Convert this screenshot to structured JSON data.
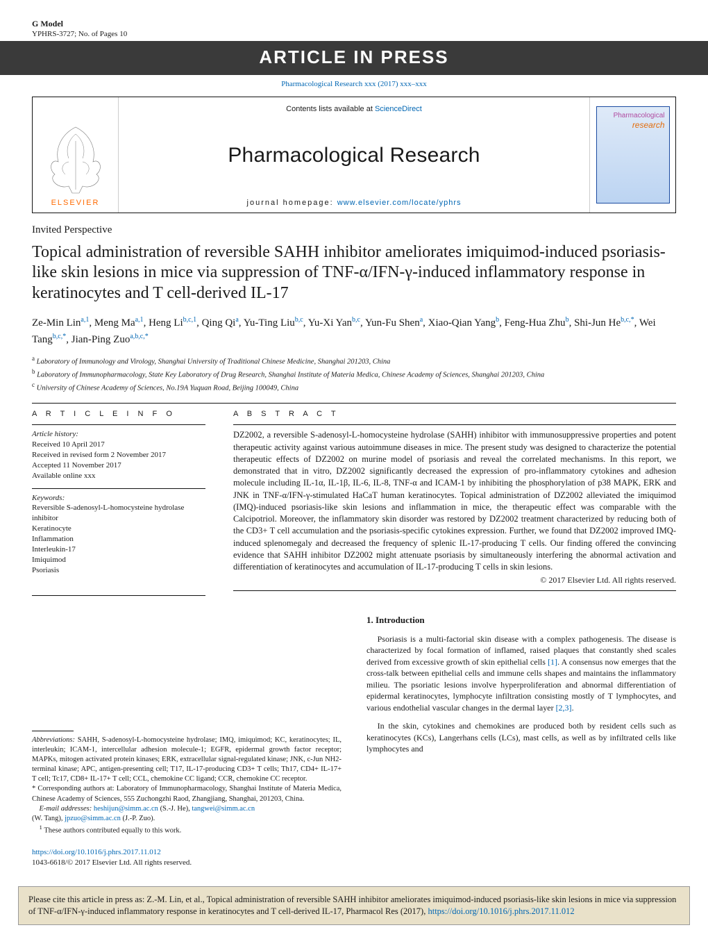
{
  "gmodel": {
    "title": "G Model",
    "sub": "YPHRS-3727;   No. of Pages 10"
  },
  "aip": "ARTICLE IN PRESS",
  "ref_line": "Pharmacological Research xxx (2017) xxx–xxx",
  "masthead": {
    "contents_prefix": "Contents lists available at ",
    "contents_link": "ScienceDirect",
    "journal": "Pharmacological Research",
    "homepage_prefix": "journal homepage: ",
    "homepage_link": "www.elsevier.com/locate/yphrs",
    "elsevier": "ELSEVIER",
    "cover_t1": "Pharmacological",
    "cover_t2": "research"
  },
  "article_type": "Invited Perspective",
  "title": "Topical administration of reversible SAHH inhibitor ameliorates imiquimod-induced psoriasis-like skin lesions in mice via suppression of TNF-α/IFN-γ-induced inflammatory response in keratinocytes and T cell-derived IL-17",
  "authors_html": "Ze-Min Lin<sup>a,1</sup>, Meng Ma<sup>a,1</sup>, Heng Li<sup>b,c,1</sup>, Qing Qi<sup>a</sup>, Yu-Ting Liu<sup>b,c</sup>, Yu-Xi Yan<sup>b,c</sup>, Yun-Fu Shen<sup>a</sup>, Xiao-Qian Yang<sup>b</sup>, Feng-Hua Zhu<sup>b</sup>, Shi-Jun He<sup>b,c,<span class=\"ast\">*</span></sup>, Wei Tang<sup>b,c,<span class=\"ast\">*</span></sup>, Jian-Ping Zuo<sup>a,b,c,<span class=\"ast\">*</span></sup>",
  "affils": {
    "a": "Laboratory of Immunology and Virology, Shanghai University of Traditional Chinese Medicine, Shanghai 201203, China",
    "b": "Laboratory of Immunopharmacology, State Key Laboratory of Drug Research, Shanghai Institute of Materia Medica, Chinese Academy of Sciences, Shanghai 201203, China",
    "c": "University of Chinese Academy of Sciences, No.19A Yuquan Road, Beijing 100049, China"
  },
  "heads": {
    "info": "A R T I C L E    I N F O",
    "abs": "A B S T R A C T"
  },
  "history": {
    "label": "Article history:",
    "l1": "Received 10 April 2017",
    "l2": "Received in revised form 2 November 2017",
    "l3": "Accepted 11 November 2017",
    "l4": "Available online xxx"
  },
  "keywords": {
    "label": "Keywords:",
    "items": [
      "Reversible S-adenosyl-L-homocysteine hydrolase inhibitor",
      "Keratinocyte",
      "Inflammation",
      "Interleukin-17",
      "Imiquimod",
      "Psoriasis"
    ]
  },
  "abstract": "DZ2002, a reversible S-adenosyl-L-homocysteine hydrolase (SAHH) inhibitor with immunosuppressive properties and potent therapeutic activity against various autoimmune diseases in mice. The present study was designed to characterize the potential therapeutic effects of DZ2002 on murine model of psoriasis and reveal the correlated mechanisms. In this report, we demonstrated that in vitro, DZ2002 significantly decreased the expression of pro-inflammatory cytokines and adhesion molecule including IL-1α, IL-1β, IL-6, IL-8, TNF-α and ICAM-1 by inhibiting the phosphorylation of p38 MAPK, ERK and JNK in TNF-α/IFN-γ-stimulated HaCaT human keratinocytes. Topical administration of DZ2002 alleviated the imiquimod (IMQ)-induced psoriasis-like skin lesions and inflammation in mice, the therapeutic effect was comparable with the Calcipotriol. Moreover, the inflammatory skin disorder was restored by DZ2002 treatment characterized by reducing both of the CD3+ T cell accumulation and the psoriasis-specific cytokines expression. Further, we found that DZ2002 improved IMQ-induced splenomegaly and decreased the frequency of splenic IL-17-producing T cells. Our finding offered the convincing evidence that SAHH inhibitor DZ2002 might attenuate psoriasis by simultaneously interfering the abnormal activation and differentiation of keratinocytes and accumulation of IL-17-producing T cells in skin lesions.",
  "copyright": "© 2017 Elsevier Ltd. All rights reserved.",
  "intro": {
    "head": "1.  Introduction",
    "p1a": "Psoriasis is a multi-factorial skin disease with a complex pathogenesis. The disease is characterized by focal formation of inflamed, raised plaques that constantly shed scales derived from excessive growth of skin epithelial cells ",
    "c1": "[1]",
    "p1b": ". A consensus now emerges that the cross-talk between epithelial cells and immune cells shapes and maintains the inflammatory milieu. The psoriatic lesions involve hyperproliferation and abnormal differentiation of epidermal keratinocytes, lymphocyte infiltration consisting mostly of T lymphocytes, and various endothelial vascular changes in the dermal layer ",
    "c2": "[2,3]",
    "p1c": ".",
    "p2": "In the skin, cytokines and chemokines are produced both by resident cells such as keratinocytes (KCs), Langerhans cells (LCs), mast cells, as well as by infiltrated cells like lymphocytes and"
  },
  "footnotes": {
    "abbrev_label": "Abbreviations:",
    "abbrev": " SAHH, S-adenosyl-L-homocysteine hydrolase; IMQ, imiquimod; KC, keratinocytes; IL, interleukin; ICAM-1, intercellular adhesion molecule-1; EGFR, epidermal growth factor receptor; MAPKs, mitogen activated protein kinases; ERK, extracellular signal-regulated kinase; JNK, c-Jun NH2-terminal kinase; APC, antigen-presenting cell; T17, IL-17-producing CD3+ T cells; Th17, CD4+ IL-17+ T cell; Tc17, CD8+ IL-17+ T cell; CCL, chemokine CC ligand; CCR, chemokine CC receptor.",
    "corr": "* Corresponding authors at: Laboratory of Immunopharmacology, Shanghai Institute of Materia Medica, Chinese Academy of Sciences, 555 Zuchongzhi Raod, Zhangjiang, Shanghai, 201203, China.",
    "email_label": "E-mail addresses:",
    "email1": "heshijun@simm.ac.cn",
    "email1_who": " (S.-J. He), ",
    "email2": "tangwei@simm.ac.cn",
    "email2_who": " (W. Tang), ",
    "email3": "jpzuo@simm.ac.cn",
    "email3_who": " (J.-P. Zuo).",
    "equal": "These authors contributed equally to this work."
  },
  "doi": {
    "url": "https://doi.org/10.1016/j.phrs.2017.11.012",
    "issn": "1043-6618/© 2017 Elsevier Ltd. All rights reserved."
  },
  "citebox": {
    "text_a": "Please cite this article in press as: Z.-M. Lin, et al., Topical administration of reversible SAHH inhibitor ameliorates imiquimod-induced psoriasis-like skin lesions in mice via suppression of TNF-α/IFN-γ-induced inflammatory response in keratinocytes and T cell-derived IL-17, Pharmacol Res (2017), ",
    "link": "https://doi.org/10.1016/j.phrs.2017.11.012"
  },
  "colors": {
    "link": "#0066b3",
    "band": "#3a3a3a",
    "orange": "#ff6a00",
    "box_bg": "#e9e1c9"
  }
}
